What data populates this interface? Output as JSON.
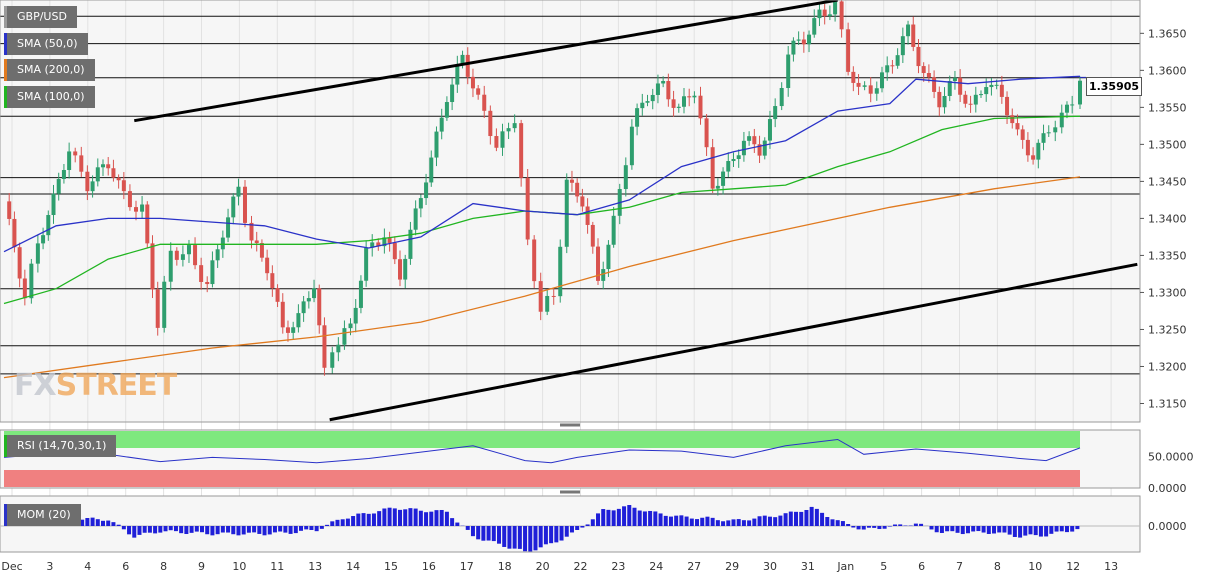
{
  "symbol": "GBP/USD",
  "indicators": {
    "sma50": {
      "label": "SMA (50,0)",
      "color": "#2a32c8"
    },
    "sma200": {
      "label": "SMA (200,0)",
      "color": "#e07a1f"
    },
    "sma100": {
      "label": "SMA (100,0)",
      "color": "#21b521"
    }
  },
  "last_price": "1.35905",
  "watermark": {
    "part1": "FX",
    "part2": "STREET"
  },
  "rsi_panel": {
    "label": "RSI (14,70,30,1)",
    "overbought_color": "#7ee87e",
    "oversold_color": "#f08080",
    "tick_labels": [
      "50.0000",
      "0.0000"
    ]
  },
  "mom_panel": {
    "label": "MOM (20)",
    "color": "#1f1fd8",
    "tick_labels": [
      "0.0000"
    ]
  },
  "chart_data": {
    "type": "candlestick",
    "y_axis": {
      "ticks": [
        "1.3650",
        "1.3600",
        "1.3550",
        "1.3500",
        "1.3450",
        "1.3400",
        "1.3350",
        "1.3300",
        "1.3250",
        "1.3200",
        "1.3150"
      ],
      "range": [
        1.3125,
        1.3695
      ]
    },
    "x_axis": {
      "tick_labels": [
        "Dec",
        "3",
        "4",
        "6",
        "8",
        "9",
        "10",
        "11",
        "13",
        "14",
        "15",
        "16",
        "17",
        "18",
        "20",
        "22",
        "23",
        "24",
        "27",
        "29",
        "30",
        "31",
        "Jan",
        "5",
        "6",
        "7",
        "8",
        "10",
        "12",
        "13"
      ]
    },
    "horizontal_levels": [
      1.3695,
      1.3673,
      1.3636,
      1.359,
      1.3538,
      1.3455,
      1.3433,
      1.3305,
      1.3228,
      1.319
    ],
    "trendlines": [
      {
        "name": "upper-channel",
        "points": [
          [
            5.0,
            1.3532
          ],
          [
            32.0,
            1.3695
          ]
        ]
      },
      {
        "name": "lower-channel",
        "points": [
          [
            12.5,
            1.3128
          ],
          [
            43.5,
            1.3338
          ]
        ]
      }
    ],
    "candle_anchors": [
      {
        "x": 0.0,
        "close": 1.3415
      },
      {
        "x": 0.8,
        "close": 1.33
      },
      {
        "x": 1.3,
        "close": 1.337
      },
      {
        "x": 1.9,
        "close": 1.342
      },
      {
        "x": 2.5,
        "close": 1.3495
      },
      {
        "x": 3.2,
        "close": 1.345
      },
      {
        "x": 4.0,
        "close": 1.347
      },
      {
        "x": 4.6,
        "close": 1.343
      },
      {
        "x": 5.3,
        "close": 1.3415
      },
      {
        "x": 5.9,
        "close": 1.3255
      },
      {
        "x": 6.4,
        "close": 1.335
      },
      {
        "x": 7.1,
        "close": 1.336
      },
      {
        "x": 7.8,
        "close": 1.3305
      },
      {
        "x": 8.4,
        "close": 1.338
      },
      {
        "x": 9.0,
        "close": 1.3445
      },
      {
        "x": 9.5,
        "close": 1.337
      },
      {
        "x": 10.1,
        "close": 1.333
      },
      {
        "x": 10.7,
        "close": 1.325
      },
      {
        "x": 11.3,
        "close": 1.327
      },
      {
        "x": 11.9,
        "close": 1.331
      },
      {
        "x": 12.3,
        "close": 1.3185
      },
      {
        "x": 12.6,
        "close": 1.3225
      },
      {
        "x": 13.3,
        "close": 1.326
      },
      {
        "x": 13.9,
        "close": 1.335
      },
      {
        "x": 14.6,
        "close": 1.3375
      },
      {
        "x": 15.2,
        "close": 1.333
      },
      {
        "x": 15.8,
        "close": 1.3405
      },
      {
        "x": 16.4,
        "close": 1.3475
      },
      {
        "x": 17.0,
        "close": 1.357
      },
      {
        "x": 17.6,
        "close": 1.362
      },
      {
        "x": 18.2,
        "close": 1.3555
      },
      {
        "x": 18.9,
        "close": 1.35
      },
      {
        "x": 19.6,
        "close": 1.354
      },
      {
        "x": 20.1,
        "close": 1.336
      },
      {
        "x": 20.6,
        "close": 1.3275
      },
      {
        "x": 21.1,
        "close": 1.33
      },
      {
        "x": 21.6,
        "close": 1.345
      },
      {
        "x": 22.2,
        "close": 1.342
      },
      {
        "x": 22.8,
        "close": 1.3315
      },
      {
        "x": 23.4,
        "close": 1.34
      },
      {
        "x": 24.1,
        "close": 1.352
      },
      {
        "x": 24.7,
        "close": 1.3565
      },
      {
        "x": 25.3,
        "close": 1.3585
      },
      {
        "x": 25.9,
        "close": 1.3545
      },
      {
        "x": 26.5,
        "close": 1.357
      },
      {
        "x": 27.2,
        "close": 1.345
      },
      {
        "x": 27.8,
        "close": 1.347
      },
      {
        "x": 28.4,
        "close": 1.35
      },
      {
        "x": 29.0,
        "close": 1.3495
      },
      {
        "x": 29.6,
        "close": 1.355
      },
      {
        "x": 30.1,
        "close": 1.362
      },
      {
        "x": 30.7,
        "close": 1.364
      },
      {
        "x": 31.3,
        "close": 1.368
      },
      {
        "x": 31.9,
        "close": 1.369
      },
      {
        "x": 32.4,
        "close": 1.36
      },
      {
        "x": 32.8,
        "close": 1.357
      },
      {
        "x": 33.5,
        "close": 1.3585
      },
      {
        "x": 34.1,
        "close": 1.361
      },
      {
        "x": 34.7,
        "close": 1.365
      },
      {
        "x": 35.3,
        "close": 1.36
      },
      {
        "x": 35.9,
        "close": 1.356
      },
      {
        "x": 36.5,
        "close": 1.358
      },
      {
        "x": 37.1,
        "close": 1.355
      },
      {
        "x": 37.7,
        "close": 1.359
      },
      {
        "x": 38.3,
        "close": 1.356
      },
      {
        "x": 38.9,
        "close": 1.351
      },
      {
        "x": 39.5,
        "close": 1.349
      },
      {
        "x": 40.1,
        "close": 1.352
      },
      {
        "x": 40.6,
        "close": 1.353
      },
      {
        "x": 41.0,
        "close": 1.356
      },
      {
        "x": 41.3,
        "close": 1.35905
      }
    ],
    "sma50": [
      [
        0,
        1.3355
      ],
      [
        2,
        1.339
      ],
      [
        4,
        1.34
      ],
      [
        6,
        1.34
      ],
      [
        8,
        1.3395
      ],
      [
        10,
        1.339
      ],
      [
        12,
        1.3372
      ],
      [
        14,
        1.336
      ],
      [
        16,
        1.3375
      ],
      [
        18,
        1.342
      ],
      [
        20,
        1.341
      ],
      [
        22,
        1.3405
      ],
      [
        24,
        1.3425
      ],
      [
        26,
        1.347
      ],
      [
        28,
        1.349
      ],
      [
        30,
        1.3505
      ],
      [
        32,
        1.3545
      ],
      [
        34,
        1.3555
      ],
      [
        35,
        1.3588
      ],
      [
        37,
        1.3582
      ],
      [
        39,
        1.3588
      ],
      [
        41.3,
        1.3592
      ]
    ],
    "sma100": [
      [
        0,
        1.3285
      ],
      [
        2,
        1.3305
      ],
      [
        4,
        1.3345
      ],
      [
        6,
        1.3365
      ],
      [
        8,
        1.3365
      ],
      [
        10,
        1.3365
      ],
      [
        12,
        1.3365
      ],
      [
        14,
        1.337
      ],
      [
        16,
        1.338
      ],
      [
        18,
        1.34
      ],
      [
        20,
        1.341
      ],
      [
        22,
        1.3405
      ],
      [
        24,
        1.3415
      ],
      [
        26,
        1.3435
      ],
      [
        28,
        1.344
      ],
      [
        30,
        1.3445
      ],
      [
        32,
        1.347
      ],
      [
        34,
        1.349
      ],
      [
        36,
        1.352
      ],
      [
        38,
        1.3535
      ],
      [
        41.3,
        1.3538
      ]
    ],
    "sma200": [
      [
        0,
        1.3185
      ],
      [
        4,
        1.3205
      ],
      [
        8,
        1.3225
      ],
      [
        12,
        1.324
      ],
      [
        16,
        1.326
      ],
      [
        20,
        1.3295
      ],
      [
        24,
        1.3335
      ],
      [
        28,
        1.337
      ],
      [
        30,
        1.3385
      ],
      [
        34,
        1.3415
      ],
      [
        38,
        1.344
      ],
      [
        41.3,
        1.3456
      ]
    ],
    "rsi": [
      [
        0,
        49
      ],
      [
        2,
        53
      ],
      [
        4,
        52
      ],
      [
        6,
        45
      ],
      [
        8,
        49
      ],
      [
        10,
        47
      ],
      [
        12,
        44
      ],
      [
        14,
        48
      ],
      [
        16,
        54
      ],
      [
        18,
        60
      ],
      [
        20,
        46
      ],
      [
        21,
        44
      ],
      [
        22,
        49
      ],
      [
        24,
        56
      ],
      [
        26,
        55
      ],
      [
        28,
        49
      ],
      [
        30,
        60
      ],
      [
        32,
        66
      ],
      [
        33,
        52
      ],
      [
        35,
        57
      ],
      [
        37,
        53
      ],
      [
        39,
        48
      ],
      [
        40,
        46
      ],
      [
        41.3,
        58
      ]
    ],
    "momentum": [
      [
        0,
        0.2
      ],
      [
        2,
        0.3
      ],
      [
        4,
        0.25
      ],
      [
        5,
        -0.4
      ],
      [
        6,
        -0.2
      ],
      [
        8,
        -0.3
      ],
      [
        10,
        -0.3
      ],
      [
        11,
        -0.25
      ],
      [
        12,
        -0.15
      ],
      [
        13,
        0.3
      ],
      [
        15,
        0.7
      ],
      [
        16,
        0.6
      ],
      [
        17,
        0.55
      ],
      [
        18,
        -0.4
      ],
      [
        20,
        -1.0
      ],
      [
        21,
        -0.7
      ],
      [
        22,
        -0.2
      ],
      [
        23,
        0.6
      ],
      [
        24,
        0.75
      ],
      [
        25,
        0.5
      ],
      [
        26,
        0.35
      ],
      [
        27,
        0.3
      ],
      [
        28,
        0.2
      ],
      [
        30,
        0.45
      ],
      [
        31,
        0.7
      ],
      [
        32,
        0.2
      ],
      [
        33,
        -0.15
      ],
      [
        35,
        0.1
      ],
      [
        36,
        -0.25
      ],
      [
        38,
        -0.25
      ],
      [
        39,
        -0.4
      ],
      [
        40,
        -0.35
      ],
      [
        41.3,
        -0.1
      ]
    ],
    "annotations": [
      "1.35905"
    ]
  }
}
